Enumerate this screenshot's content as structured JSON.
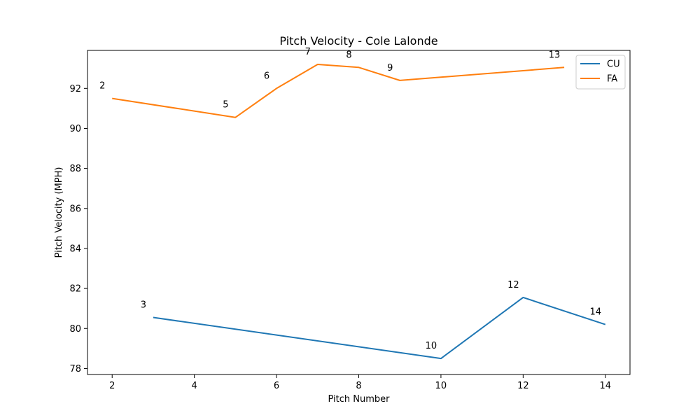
{
  "chart_data": {
    "type": "line",
    "title": "Pitch Velocity - Cole Lalonde",
    "xlabel": "Pitch Number",
    "ylabel": "Pitch Velocity (MPH)",
    "xlim": [
      1.4,
      14.6
    ],
    "ylim": [
      77.7,
      93.9
    ],
    "xticks": [
      2,
      4,
      6,
      8,
      10,
      12,
      14
    ],
    "yticks": [
      78,
      80,
      82,
      84,
      86,
      88,
      90,
      92
    ],
    "grid": false,
    "legend_position": "top-right",
    "series": [
      {
        "name": "CU",
        "color": "#1f77b4",
        "x": [
          3,
          10,
          12,
          14
        ],
        "y": [
          80.55,
          78.5,
          81.55,
          80.2
        ],
        "labels": [
          "3",
          "10",
          "12",
          "14"
        ]
      },
      {
        "name": "FA",
        "color": "#ff7f0e",
        "x": [
          2,
          5,
          6,
          7,
          8,
          9,
          13
        ],
        "y": [
          91.5,
          90.55,
          92.0,
          93.2,
          93.05,
          92.4,
          93.05
        ],
        "labels": [
          "2",
          "5",
          "6",
          "7",
          "8",
          "9",
          "13"
        ]
      }
    ]
  }
}
